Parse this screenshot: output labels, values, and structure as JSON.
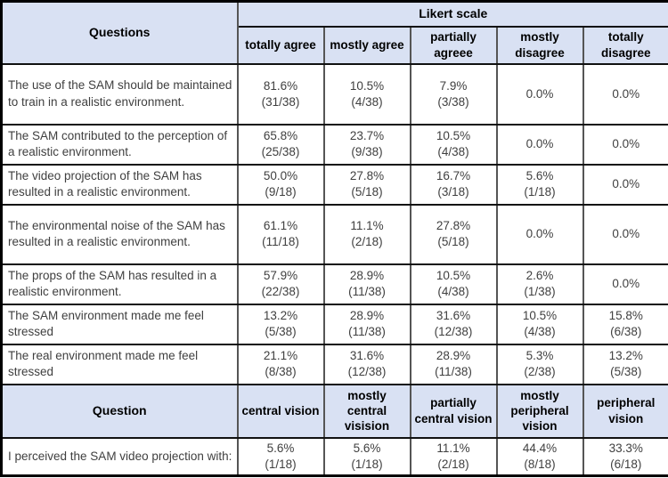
{
  "colors": {
    "header_bg": "#d9e1f3",
    "border_vertical": "#555555",
    "border_horizontal": "#111111",
    "border_outer": "#000000",
    "header_text": "#000000",
    "body_text": "#3f3f3f",
    "page_bg": "#ffffff"
  },
  "table1": {
    "corner_label": "Questions",
    "group_label": "Likert scale",
    "columns": [
      "totally agree",
      "mostly agree",
      "partially agreee",
      "mostly disagree",
      "totally disagree"
    ],
    "rows": [
      {
        "question": "The use of the SAM should be maintained to train in a realistic environment.",
        "values": [
          {
            "pct": "81.6%",
            "frac": "(31/38)"
          },
          {
            "pct": "10.5%",
            "frac": "(4/38)"
          },
          {
            "pct": "7.9%",
            "frac": "(3/38)"
          },
          {
            "pct": "0.0%",
            "frac": ""
          },
          {
            "pct": "0.0%",
            "frac": ""
          }
        ]
      },
      {
        "question": "The SAM contributed to the perception of a realistic environment.",
        "values": [
          {
            "pct": "65.8%",
            "frac": "(25/38)"
          },
          {
            "pct": "23.7%",
            "frac": "(9/38)"
          },
          {
            "pct": "10.5%",
            "frac": "(4/38)"
          },
          {
            "pct": "0.0%",
            "frac": ""
          },
          {
            "pct": "0.0%",
            "frac": ""
          }
        ]
      },
      {
        "question": "The video projection of the SAM has resulted in a realistic environment.",
        "values": [
          {
            "pct": "50.0%",
            "frac": "(9/18)"
          },
          {
            "pct": "27.8%",
            "frac": "(5/18)"
          },
          {
            "pct": "16.7%",
            "frac": "(3/18)"
          },
          {
            "pct": "5.6%",
            "frac": "(1/18)"
          },
          {
            "pct": "0.0%",
            "frac": ""
          }
        ]
      },
      {
        "question": "The environmental noise of the SAM has resulted in a realistic environment.",
        "values": [
          {
            "pct": "61.1%",
            "frac": "(11/18)"
          },
          {
            "pct": "11.1%",
            "frac": "(2/18)"
          },
          {
            "pct": "27.8%",
            "frac": "(5/18)"
          },
          {
            "pct": "0.0%",
            "frac": ""
          },
          {
            "pct": "0.0%",
            "frac": ""
          }
        ]
      },
      {
        "question": "The props of the SAM has resulted in a realistic environment.",
        "values": [
          {
            "pct": "57.9%",
            "frac": "(22/38)"
          },
          {
            "pct": "28.9%",
            "frac": "(11/38)"
          },
          {
            "pct": "10.5%",
            "frac": "(4/38)"
          },
          {
            "pct": "2.6%",
            "frac": "(1/38)"
          },
          {
            "pct": "0.0%",
            "frac": ""
          }
        ]
      },
      {
        "question": "The SAM environment made me feel stressed",
        "values": [
          {
            "pct": "13.2%",
            "frac": "(5/38)"
          },
          {
            "pct": "28.9%",
            "frac": "(11/38)"
          },
          {
            "pct": "31.6%",
            "frac": "(12/38)"
          },
          {
            "pct": "10.5%",
            "frac": "(4/38)"
          },
          {
            "pct": "15.8%",
            "frac": "(6/38)"
          }
        ]
      },
      {
        "question": "The real environment made me feel stressed",
        "values": [
          {
            "pct": "21.1%",
            "frac": "(8/38)"
          },
          {
            "pct": "31.6%",
            "frac": "(12/38)"
          },
          {
            "pct": "28.9%",
            "frac": "(11/38)"
          },
          {
            "pct": "5.3%",
            "frac": "(2/38)"
          },
          {
            "pct": "13.2%",
            "frac": "(5/38)"
          }
        ]
      }
    ]
  },
  "table2": {
    "corner_label": "Question",
    "columns": [
      "central vision",
      "mostly central visision",
      "partially central vision",
      "mostly peripheral vision",
      "peripheral vision"
    ],
    "rows": [
      {
        "question": "I perceived the SAM video projection with:",
        "values": [
          {
            "pct": "5.6%",
            "frac": "(1/18)"
          },
          {
            "pct": "5.6%",
            "frac": "(1/18)"
          },
          {
            "pct": "11.1%",
            "frac": "(2/18)"
          },
          {
            "pct": "44.4%",
            "frac": "(8/18)"
          },
          {
            "pct": "33.3%",
            "frac": "(6/18)"
          }
        ]
      }
    ]
  }
}
